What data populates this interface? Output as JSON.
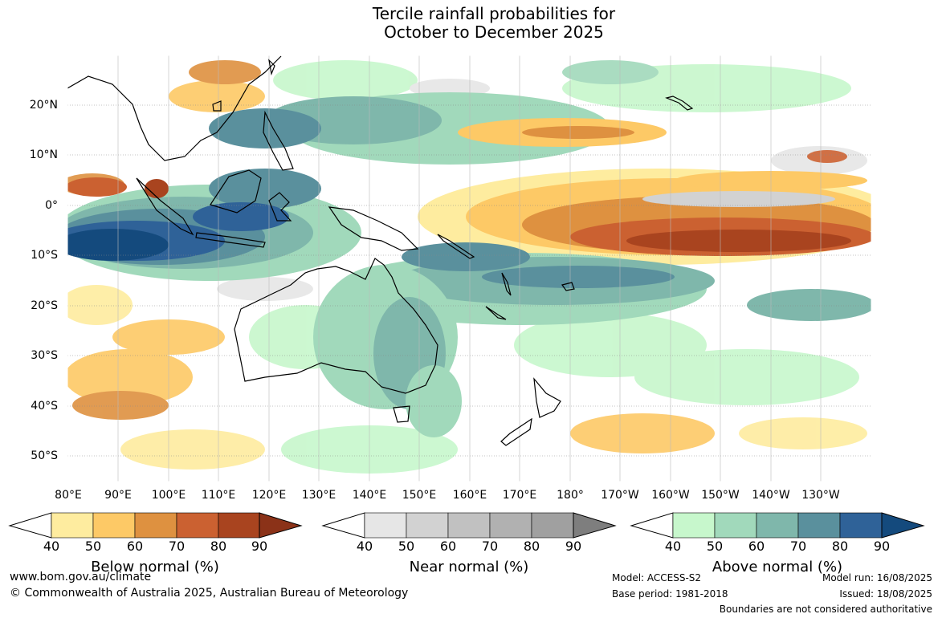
{
  "title_line1": "Tercile rainfall probabilities for",
  "title_line2": "October to December 2025",
  "lat_labels": [
    "20°N",
    "10°N",
    "0°",
    "10°S",
    "20°S",
    "30°S",
    "40°S",
    "50°S"
  ],
  "lon_labels": [
    "80°E",
    "90°E",
    "100°E",
    "110°E",
    "120°E",
    "130°E",
    "140°E",
    "150°E",
    "160°E",
    "170°E",
    "180°",
    "170°W",
    "160°W",
    "150°W",
    "140°W",
    "130°W"
  ],
  "legends": {
    "below": {
      "title": "Below normal (%)",
      "ticks": [
        "40",
        "50",
        "60",
        "70",
        "80",
        "90"
      ],
      "colors": [
        "#ffffff",
        "#feec9f",
        "#fdc966",
        "#de9140",
        "#cb6131",
        "#a9441f",
        "#8b3218"
      ]
    },
    "near": {
      "title": "Near normal (%)",
      "ticks": [
        "40",
        "50",
        "60",
        "70",
        "80",
        "90"
      ],
      "colors": [
        "#ffffff",
        "#e6e6e6",
        "#d2d2d2",
        "#c1c1c1",
        "#b1b1b1",
        "#a0a0a0",
        "#7e7e7e"
      ]
    },
    "above": {
      "title": "Above normal (%)",
      "ticks": [
        "40",
        "50",
        "60",
        "70",
        "80",
        "90"
      ],
      "colors": [
        "#ffffff",
        "#c7f7cc",
        "#a1d9bb",
        "#7fb7ab",
        "#5a909d",
        "#2f6298",
        "#144a7d"
      ]
    }
  },
  "footer": {
    "website": "www.bom.gov.au/climate",
    "copyright": "© Commonwealth of Australia 2025, Australian Bureau of Meteorology",
    "model": "Model: ACCESS-S2",
    "base_period": "Base period: 1981-2018",
    "model_run": "Model run: 16/08/2025",
    "issued": "Issued: 18/08/2025",
    "boundaries_note": "Boundaries are not considered authoritative"
  }
}
